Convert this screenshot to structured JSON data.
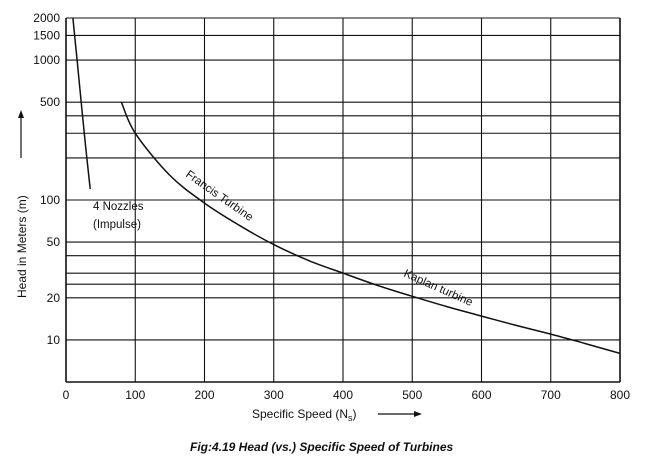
{
  "chart_data": {
    "type": "line",
    "title": "",
    "caption": "Fig:4.19 Head (vs.) Specific Speed of Turbines",
    "xlabel": "Specific Speed (N",
    "xlabel_sub": "s",
    "ylabel": "Head in Meters (m)",
    "xlim": [
      0,
      800
    ],
    "ylim": [
      5,
      2000
    ],
    "yscale": "log",
    "grid": true,
    "x_ticks": [
      0,
      100,
      200,
      300,
      400,
      500,
      600,
      700,
      800
    ],
    "x_tick_labels": [
      "0",
      "100",
      "200",
      "300",
      "400",
      "500",
      "600",
      "700",
      "800"
    ],
    "y_labeled_ticks": [
      10,
      20,
      50,
      100,
      500,
      1000,
      1500,
      2000
    ],
    "y_tick_labels": [
      "10",
      "20",
      "50",
      "100",
      "500",
      "1000",
      "1500",
      "2000"
    ],
    "y_gridlines": [
      10,
      20,
      25,
      30,
      40,
      50,
      100,
      200,
      300,
      400,
      500,
      1000,
      1500,
      2000
    ],
    "series": [
      {
        "label": "4 Nozzles (Impulse)",
        "label_lines": [
          "4 Nozzles",
          "(Impulse)"
        ],
        "x": [
          10,
          16,
          22,
          28,
          35
        ],
        "y": [
          2000,
          1000,
          500,
          250,
          120
        ]
      },
      {
        "label": "Francis Turbine",
        "x": [
          80,
          100,
          150,
          200,
          250,
          300,
          350,
          400,
          450,
          500,
          550,
          600,
          650,
          700,
          750,
          800
        ],
        "y": [
          500,
          300,
          150,
          95,
          66,
          48,
          37,
          30,
          24.5,
          20.5,
          17.3,
          14.8,
          12.7,
          11,
          9.4,
          8
        ]
      },
      {
        "label": "Kaplan turbine",
        "x": [],
        "y": []
      }
    ]
  }
}
